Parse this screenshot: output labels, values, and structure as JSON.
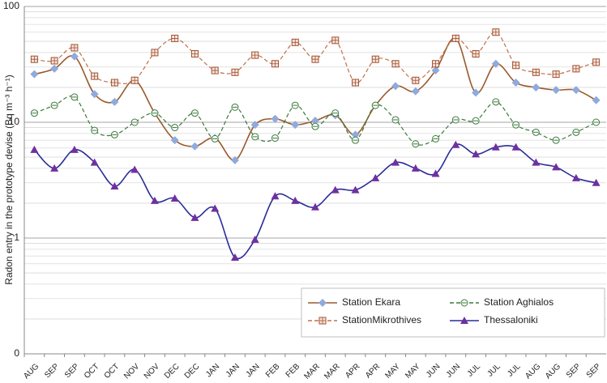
{
  "chart_data": {
    "type": "line",
    "y_label": "Radon entry in the prototype devise (Bq m⁻³ h⁻¹)",
    "categories": [
      "AUG",
      "SEP",
      "SEP",
      "OCT",
      "OCT",
      "NOV",
      "NOV",
      "DEC",
      "DEC",
      "JAN",
      "JAN",
      "JAN",
      "FEB",
      "FEB",
      "MAR",
      "MAR",
      "APR",
      "APR",
      "MAY",
      "MAY",
      "JUN",
      "JUN",
      "JUL",
      "JUL",
      "JUL",
      "AUG",
      "AUG",
      "SEP",
      "SEP"
    ],
    "series": [
      {
        "name": "Station Ekara",
        "color": "#9a5a2c",
        "marker_color": "#8faadc",
        "marker": "diamond",
        "line_style": "solid",
        "values": [
          26,
          29,
          37,
          17.5,
          15,
          23,
          12,
          7,
          6.2,
          7.3,
          4.7,
          9.5,
          10.7,
          9.5,
          10.3,
          11.5,
          7.8,
          14,
          20.5,
          18.5,
          28,
          53,
          18,
          32,
          22,
          20,
          19,
          19,
          15.5
        ]
      },
      {
        "name": "StationMikrothives",
        "color": "#c0704a",
        "marker_color": "#a0522d",
        "marker": "square",
        "line_style": "dashed",
        "values": [
          35,
          34,
          44,
          25,
          22,
          23,
          40,
          53,
          39,
          28,
          27,
          38,
          32,
          49,
          35,
          51,
          22,
          35,
          32,
          23,
          32,
          53,
          39,
          60,
          31,
          27,
          26,
          29,
          33
        ]
      },
      {
        "name": "Station Aghialos",
        "color": "#3d7a3d",
        "marker_color": "#3d7a3d",
        "marker": "circle",
        "line_style": "dashed",
        "values": [
          12,
          14,
          16.5,
          8.5,
          7.8,
          10,
          12,
          9,
          12,
          7.2,
          13.5,
          7.5,
          7.3,
          14,
          9.2,
          12,
          7,
          14,
          10.5,
          6.5,
          7.2,
          10.5,
          10.3,
          15,
          9.5,
          8.2,
          7,
          8.2,
          10
        ]
      },
      {
        "name": "Thessaloniki",
        "color": "#2b2b9a",
        "marker_color": "#7030a0",
        "marker": "triangle",
        "line_style": "solid",
        "values": [
          5.8,
          4,
          5.8,
          4.5,
          2.8,
          3.9,
          2.1,
          2.2,
          1.5,
          1.8,
          0.68,
          0.97,
          2.3,
          2.1,
          1.85,
          2.6,
          2.6,
          3.3,
          4.5,
          4,
          3.6,
          6.4,
          5.3,
          6.1,
          6.1,
          4.5,
          4.1,
          3.3,
          3
        ]
      }
    ],
    "ylim": [
      0.1,
      100
    ],
    "log_y": true,
    "yticks": [
      {
        "value": 0.1,
        "label": "0"
      },
      1,
      10,
      100
    ],
    "grid": true,
    "minor_grid": true,
    "legend": "lower right"
  }
}
